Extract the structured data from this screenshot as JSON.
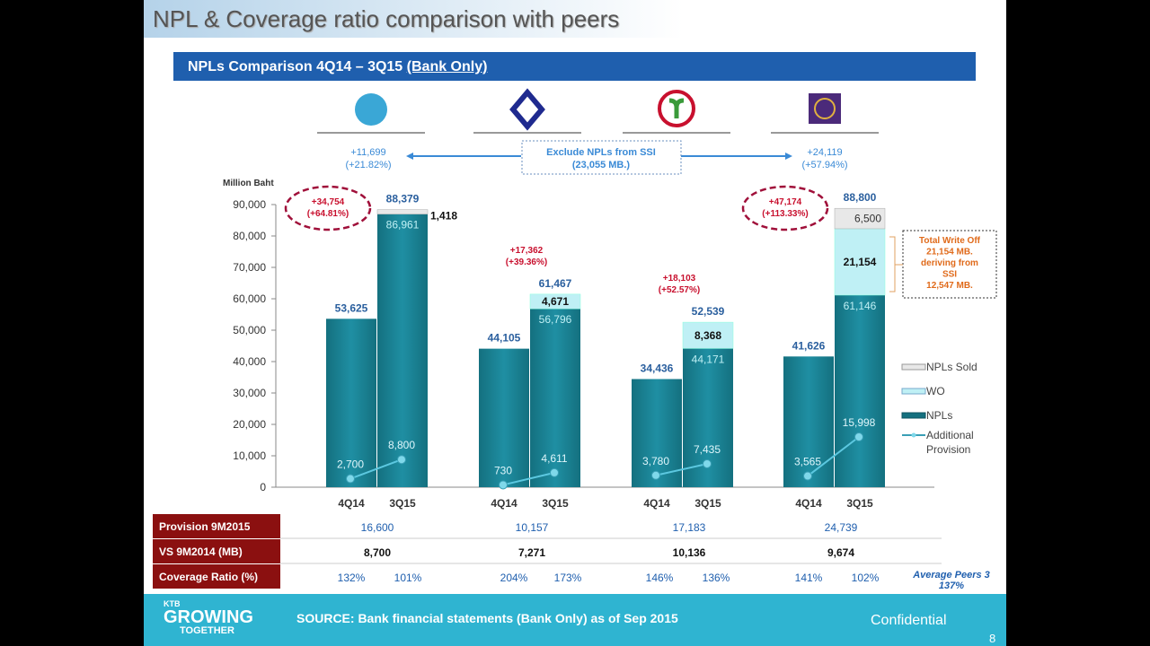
{
  "title": "NPL & Coverage ratio comparison with peers",
  "band": {
    "text": "NPLs Comparison 4Q14 – 3Q15 ",
    "underlined": "(Bank Only)"
  },
  "colors": {
    "npl": "#1f8fa3",
    "wo": "#bff0f5",
    "sold": "#e8e8e8",
    "band": "#1f5fae",
    "row_label": "#8b1010",
    "change": "#c8102e",
    "footer": "#2fb4d1"
  },
  "banks": [
    {
      "logo": "krungthai-logo",
      "color": "#3aa7d6"
    },
    {
      "logo": "bualuang-logo",
      "color": "#1f2a8f"
    },
    {
      "logo": "kasikorn-logo",
      "color": "#c8102e"
    },
    {
      "logo": "scb-logo",
      "color": "#4b2a7a"
    }
  ],
  "exclude_box": {
    "line1": "Exclude NPLs from  SSI",
    "line2": "(23,055 MB.)"
  },
  "arrow_left": {
    "line1": "+11,699",
    "line2": "(+21.82%)"
  },
  "arrow_right": {
    "line1": "+24,119",
    "line2": "(+57.94%)"
  },
  "writeoff_box": [
    "Total Write Off",
    "21,154 MB.",
    "deriving from",
    "SSI",
    "12,547 MB."
  ],
  "chart_data": {
    "type": "bar",
    "ylabel": "Million Baht",
    "ylim": [
      0,
      90000
    ],
    "yticks": [
      "0",
      "10,000",
      "20,000",
      "30,000",
      "40,000",
      "50,000",
      "60,000",
      "70,000",
      "80,000",
      "90,000"
    ],
    "categories": [
      "4Q14",
      "3Q15"
    ],
    "legend": [
      "NPLs Sold",
      "WO",
      "NPLs",
      "Additional Provision"
    ],
    "legend_position": "right",
    "groups": [
      {
        "npl": [
          53625,
          86961
        ],
        "wo": 0,
        "sold": 1418,
        "total": 88379,
        "labels": {
          "npl": [
            "53,625",
            "86,961"
          ],
          "total": "88,379",
          "wo": "",
          "sold": "1,418"
        },
        "provision": [
          2700,
          8800
        ],
        "provision_labels": [
          "2,700",
          "8,800"
        ],
        "change": [
          "+34,754",
          "(+64.81%)"
        ],
        "circled": true
      },
      {
        "npl": [
          44105,
          56796
        ],
        "wo": 4671,
        "sold": 0,
        "total": 61467,
        "labels": {
          "npl": [
            "44,105",
            "56,796"
          ],
          "total": "61,467",
          "wo": "4,671",
          "sold": ""
        },
        "provision": [
          730,
          4611
        ],
        "provision_labels": [
          "730",
          "4,611"
        ],
        "change": [
          "+17,362",
          "(+39.36%)"
        ],
        "circled": false
      },
      {
        "npl": [
          34436,
          44171
        ],
        "wo": 8368,
        "sold": 0,
        "total": 52539,
        "labels": {
          "npl": [
            "34,436",
            "44,171"
          ],
          "total": "52,539",
          "wo": "8,368",
          "sold": ""
        },
        "provision": [
          3780,
          7435
        ],
        "provision_labels": [
          "3,780",
          "7,435"
        ],
        "change": [
          "+18,103",
          "(+52.57%)"
        ],
        "circled": false
      },
      {
        "npl": [
          41626,
          61146
        ],
        "wo": 21154,
        "sold": 6500,
        "total": 88800,
        "labels": {
          "npl": [
            "41,626",
            "61,146"
          ],
          "total": "88,800",
          "wo": "21,154",
          "sold": "6,500"
        },
        "provision": [
          3565,
          15998
        ],
        "provision_labels": [
          "3,565",
          "15,998"
        ],
        "change": [
          "+47,174",
          "(+113.33%)"
        ],
        "circled": true
      }
    ]
  },
  "table": {
    "rows": [
      {
        "label": "Provision 9M2015",
        "values": [
          "16,600",
          "10,157",
          "17,183",
          "24,739"
        ]
      },
      {
        "label": "VS 9M2014 (MB)",
        "values": [
          "8,700",
          "7,271",
          "10,136",
          "9,674"
        ]
      },
      {
        "label": "Coverage  Ratio (%)",
        "values": [
          "132%",
          "101%",
          "204%",
          "173%",
          "146%",
          "136%",
          "141%",
          "102%"
        ]
      }
    ],
    "average": [
      "Average Peers 3",
      "137%"
    ]
  },
  "footer": {
    "logo_small": "KTB",
    "logo_main": "GROWING",
    "logo_sub": "TOGETHER",
    "source": "SOURCE: Bank financial statements (Bank Only) as of Sep 2015",
    "confidential": "Confidential",
    "page": "8"
  }
}
